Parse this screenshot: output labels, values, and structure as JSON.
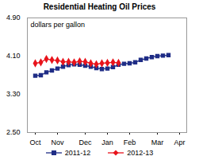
{
  "chart_data": {
    "type": "line",
    "title": "Residential Heating Oil Prices",
    "subtitle": "dollars per gallon",
    "categories": [
      "Oct",
      null,
      null,
      null,
      "Nov",
      null,
      null,
      null,
      null,
      "Dec",
      null,
      null,
      null,
      "Jan",
      null,
      null,
      null,
      "Feb",
      null,
      null,
      null,
      null,
      "Mar",
      null,
      null,
      null,
      "Apr"
    ],
    "series": [
      {
        "name": "2011-12",
        "color": "#1f2d86",
        "marker": "square",
        "values": [
          3.69,
          3.7,
          3.76,
          3.8,
          3.84,
          3.88,
          3.91,
          3.93,
          3.92,
          3.9,
          3.88,
          3.85,
          3.83,
          3.84,
          3.87,
          3.92,
          3.94,
          3.95,
          3.97,
          4.02,
          4.05,
          4.08,
          4.1,
          4.11,
          4.12,
          null,
          null
        ]
      },
      {
        "name": "2012-13",
        "color": "#e8141c",
        "marker": "diamond",
        "values": [
          3.95,
          3.97,
          4.04,
          4.02,
          4.01,
          3.98,
          3.98,
          3.97,
          3.99,
          3.98,
          3.95,
          3.93,
          3.95,
          3.96,
          3.97,
          3.96,
          null,
          null,
          null,
          null,
          null,
          null,
          null,
          null,
          null,
          null,
          null
        ]
      }
    ],
    "ylim": [
      2.5,
      4.9
    ],
    "yticks": [
      {
        "value": 2.5,
        "label": "2.50"
      },
      {
        "value": 3.3,
        "label": "3.30"
      },
      {
        "value": 4.1,
        "label": "4.10"
      },
      {
        "value": 4.9,
        "label": "4.90"
      }
    ],
    "grid": false,
    "legend": "bottom"
  }
}
